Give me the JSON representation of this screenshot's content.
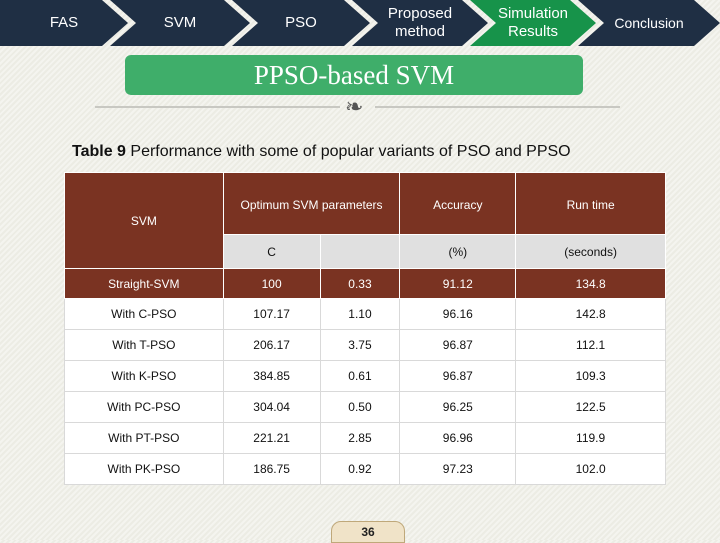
{
  "nav": [
    {
      "label": "FAS"
    },
    {
      "label": "SVM"
    },
    {
      "label": "PSO"
    },
    {
      "label": "Proposed method"
    },
    {
      "label": "Simulation Results"
    },
    {
      "label": "Conclusion"
    }
  ],
  "slide": {
    "title": "PPSO-based SVM",
    "title_icon": "decorative-swirl-icon",
    "caption_label": "Table 9",
    "caption_text": "Performance with some of popular variants of PSO and PPSO",
    "page_number": "36"
  },
  "table": {
    "corner_label": "SVM",
    "group_header": "Optimum SVM parameters",
    "accuracy_header": "Accuracy",
    "runtime_header": "Run time",
    "sub_c": "C",
    "sub_gamma": "",
    "sub_accuracy": "(%)",
    "sub_runtime": "(seconds)",
    "rows": [
      {
        "name": "Straight-SVM",
        "c": "100",
        "gamma": "0.33",
        "accuracy": "91.12",
        "runtime": "134.8"
      },
      {
        "name": "With C-PSO",
        "c": "107.17",
        "gamma": "1.10",
        "accuracy": "96.16",
        "runtime": "142.8"
      },
      {
        "name": "With T-PSO",
        "c": "206.17",
        "gamma": "3.75",
        "accuracy": "96.87",
        "runtime": "112.1"
      },
      {
        "name": "With K-PSO",
        "c": "384.85",
        "gamma": "0.61",
        "accuracy": "96.87",
        "runtime": "109.3"
      },
      {
        "name": "With PC-PSO",
        "c": "304.04",
        "gamma": "0.50",
        "accuracy": "96.25",
        "runtime": "122.5"
      },
      {
        "name": "With PT-PSO",
        "c": "221.21",
        "gamma": "2.85",
        "accuracy": "96.96",
        "runtime": "119.9"
      },
      {
        "name": "With PK-PSO",
        "c": "186.75",
        "gamma": "0.92",
        "accuracy": "97.23",
        "runtime": "102.0"
      }
    ]
  },
  "colors": {
    "nav_dark": "#1f2f44",
    "nav_active": "#17934a",
    "title_bar": "#3fae6a",
    "table_header": "#7a3322"
  }
}
